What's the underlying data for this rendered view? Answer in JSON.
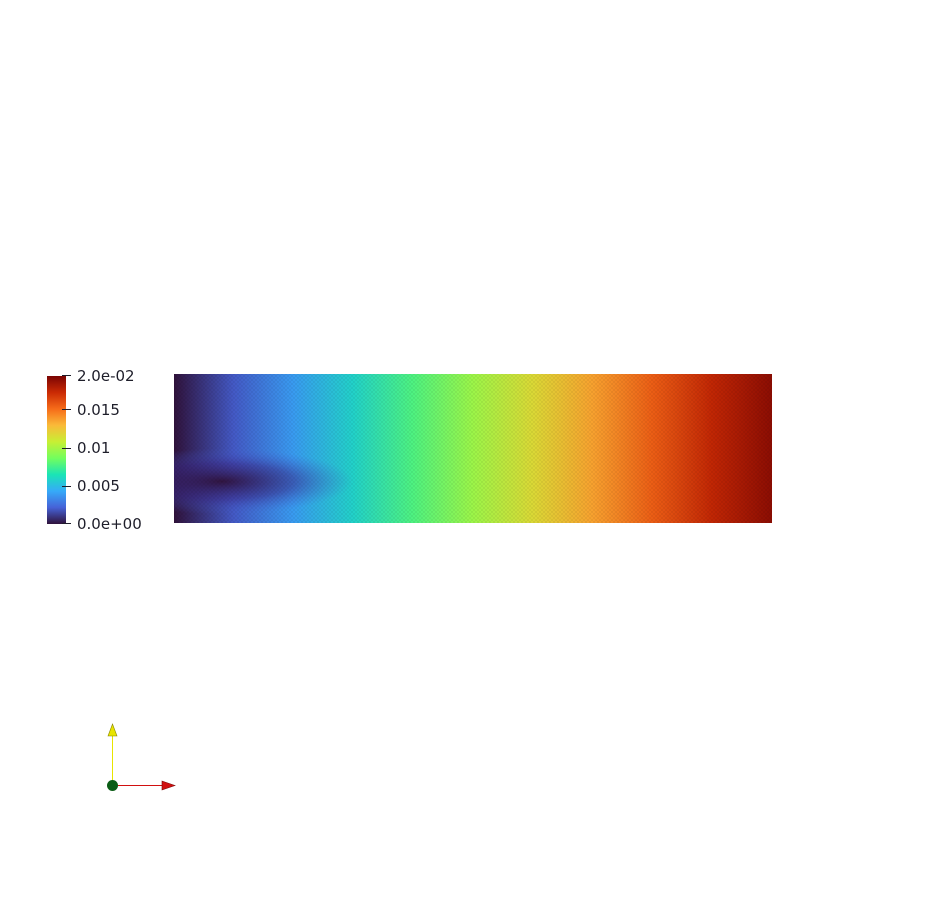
{
  "render_view": {
    "background": "#ffffff",
    "field": {
      "colormap": "turbo",
      "range": [
        0.0,
        0.02
      ],
      "value_along_x": [
        0.0,
        0.002,
        0.004,
        0.006,
        0.008,
        0.01,
        0.012,
        0.014,
        0.016,
        0.018,
        0.0195
      ],
      "low_corner_patch": "bottom-left"
    },
    "scalar_bar": {
      "ticks": [
        {
          "label": "2.0e-02",
          "value": 0.02
        },
        {
          "label": "0.015",
          "value": 0.015
        },
        {
          "label": "0.01",
          "value": 0.01
        },
        {
          "label": "0.005",
          "value": 0.005
        },
        {
          "label": "0.0e+00",
          "value": 0.0
        }
      ],
      "colors": [
        "#30123b",
        "#4662d7",
        "#36aaf9",
        "#1ae4b6",
        "#72fe5e",
        "#c8ef34",
        "#faba39",
        "#f66b19",
        "#ca2a04",
        "#7a0403"
      ]
    },
    "orientation_axes": {
      "y_axis_color": "#e8e400",
      "x_axis_color": "#d11010",
      "origin_color": "#0b5d16",
      "icons": [
        "y-axis-arrow-icon",
        "x-axis-arrow-icon",
        "origin-sphere-icon"
      ]
    }
  }
}
